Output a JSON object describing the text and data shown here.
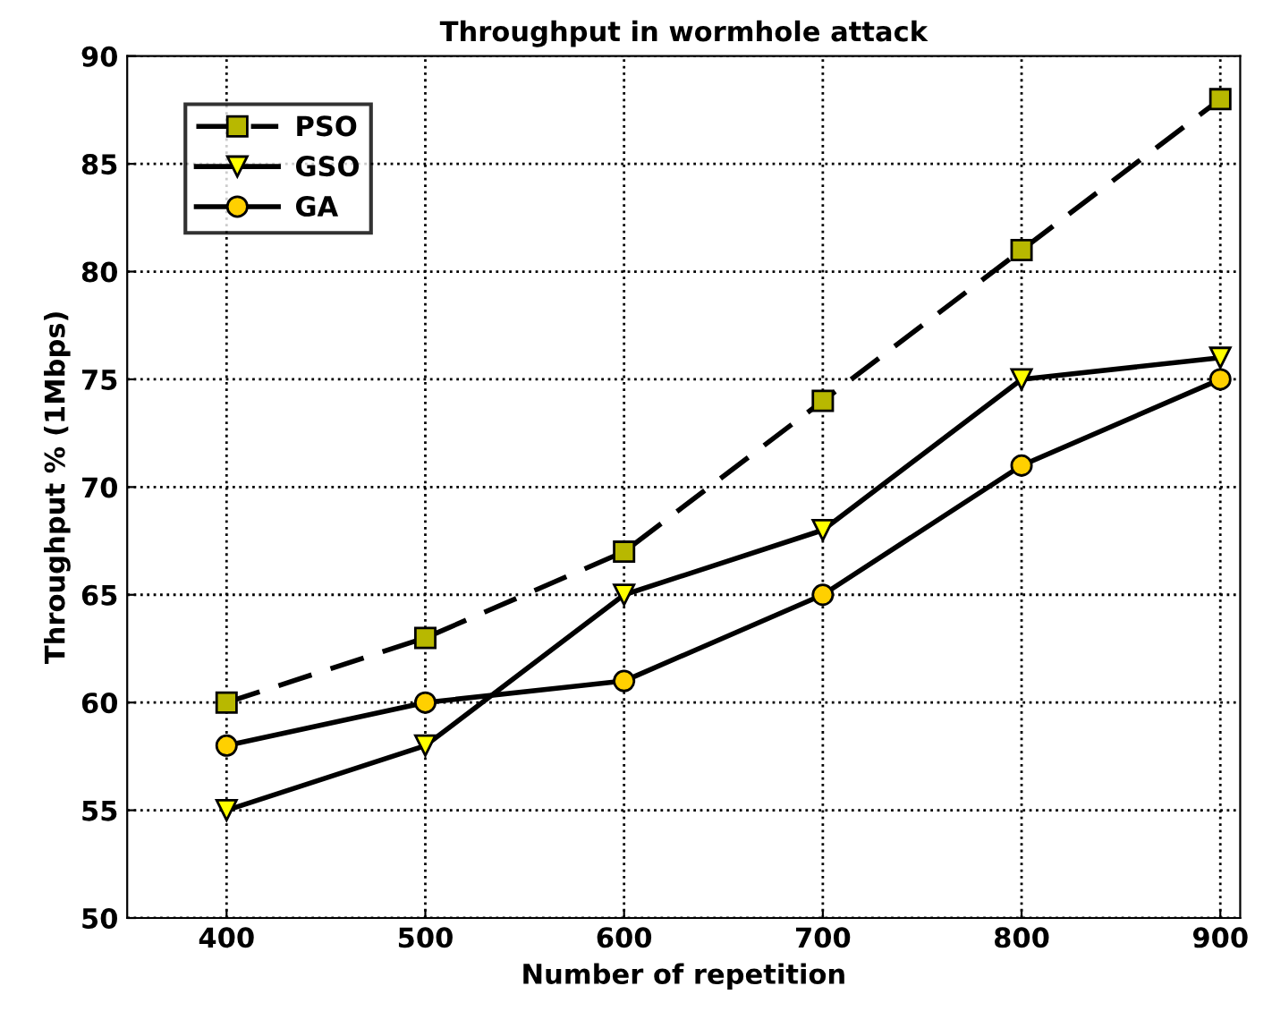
{
  "chart_data": {
    "type": "line",
    "title": "Throughput in wormhole attack",
    "xlabel": "Number of repetition",
    "ylabel": "Throughput % (1Mbps)",
    "x": [
      400,
      500,
      600,
      700,
      800,
      900
    ],
    "series": [
      {
        "name": "PSO",
        "color": "#b8b800",
        "marker": "square",
        "line_style": "dashed",
        "values": [
          60,
          63,
          67,
          74,
          81,
          88
        ]
      },
      {
        "name": "GSO",
        "color": "#ffff00",
        "marker": "triangle",
        "line_style": "solid",
        "values": [
          55,
          58,
          65,
          68,
          75,
          76
        ]
      },
      {
        "name": "GA",
        "color": "#ffd000",
        "marker": "circle",
        "line_style": "solid",
        "values": [
          58,
          60,
          61,
          65,
          71,
          75
        ]
      }
    ],
    "xlim": [
      350,
      910
    ],
    "xticks": [
      400,
      500,
      600,
      700,
      800,
      900
    ],
    "ylim": [
      50,
      90
    ],
    "yticks": [
      50,
      55,
      60,
      65,
      70,
      75,
      80,
      85,
      90
    ],
    "grid": true,
    "legend": "top left"
  }
}
